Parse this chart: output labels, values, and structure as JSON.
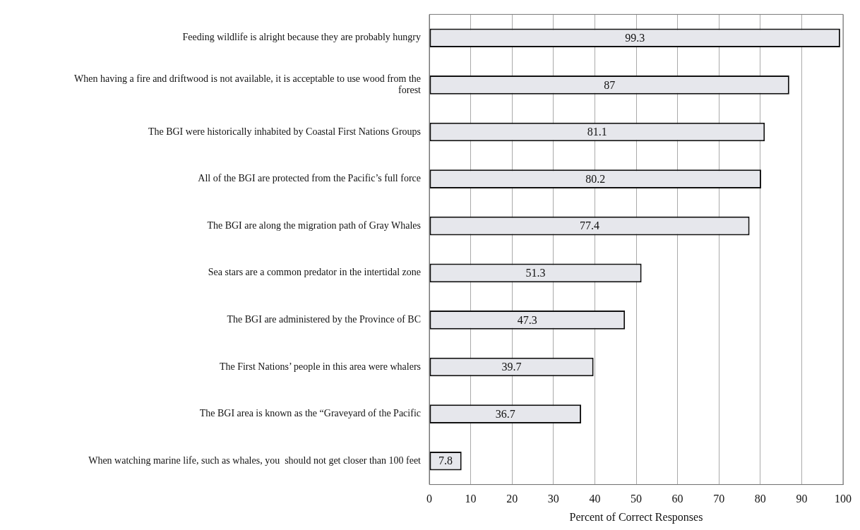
{
  "chart_data": {
    "type": "bar",
    "orientation": "horizontal",
    "xlabel": "Percent of Correct Responses",
    "categories": [
      "Feeding wildlife is alright because they are probably hungry",
      "When having a fire and driftwood is not available, it is acceptable to use wood from the forest",
      "The BGI were historically inhabited by Coastal First Nations Groups",
      "All of the BGI are protected from the Pacific’s full force",
      "The BGI are along the migration path of Gray Whales",
      "Sea stars are a common predator in the intertidal zone",
      "The BGI are administered by the Province of BC",
      "The First Nations’ people in this area were whalers",
      "The BGI area is known as the “Graveyard of the Pacific",
      "When watching marine life, such as whales, you  should not get closer than 100 feet"
    ],
    "values": [
      99.3,
      87,
      81.1,
      80.2,
      77.4,
      51.3,
      47.3,
      39.7,
      36.7,
      7.8
    ],
    "color": "#e6e7ec",
    "data_labels": true,
    "grid": "x",
    "legend": false,
    "xlim": [
      0,
      100
    ],
    "xticks": [
      0,
      10,
      20,
      30,
      40,
      50,
      60,
      70,
      80,
      90,
      100
    ]
  }
}
